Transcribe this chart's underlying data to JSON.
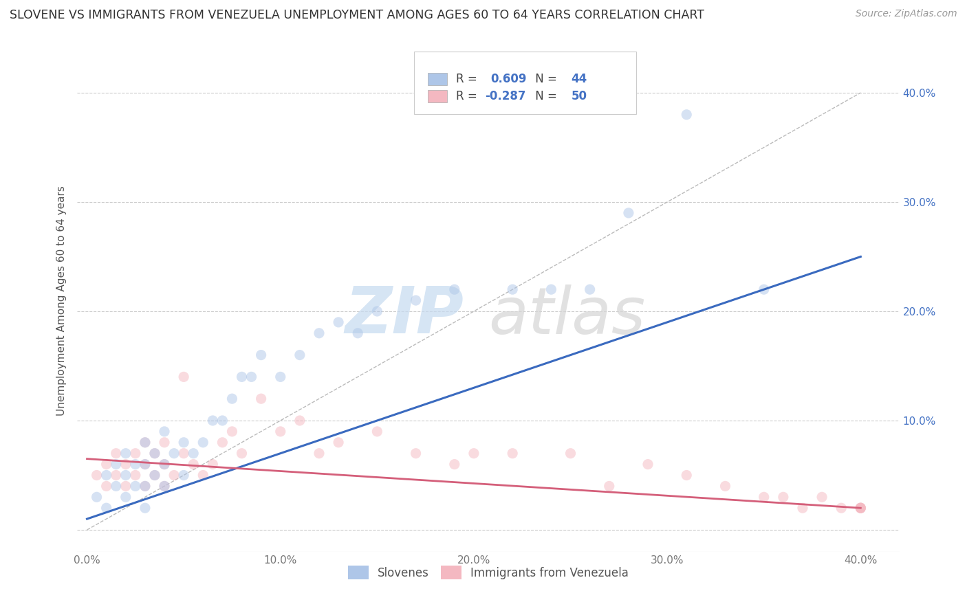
{
  "title": "SLOVENE VS IMMIGRANTS FROM VENEZUELA UNEMPLOYMENT AMONG AGES 60 TO 64 YEARS CORRELATION CHART",
  "source": "Source: ZipAtlas.com",
  "ylabel": "Unemployment Among Ages 60 to 64 years",
  "xlim": [
    -0.005,
    0.42
  ],
  "ylim": [
    -0.02,
    0.44
  ],
  "xticks": [
    0.0,
    0.1,
    0.2,
    0.3,
    0.4
  ],
  "yticks": [
    0.0,
    0.1,
    0.2,
    0.3,
    0.4
  ],
  "xticklabels": [
    "0.0%",
    "10.0%",
    "20.0%",
    "30.0%",
    "40.0%"
  ],
  "left_yticklabels": [
    "",
    "",
    "",
    "",
    ""
  ],
  "right_yticklabels": [
    "",
    "10.0%",
    "20.0%",
    "30.0%",
    "40.0%"
  ],
  "legend_blue_r": "0.609",
  "legend_blue_n": "44",
  "legend_pink_r": "-0.287",
  "legend_pink_n": "50",
  "legend_label_blue": "Slovenes",
  "legend_label_pink": "Immigrants from Venezuela",
  "blue_color": "#aec6e8",
  "pink_color": "#f4b8c1",
  "blue_line_color": "#3a6abf",
  "pink_line_color": "#d45f7a",
  "watermark_zip": "ZIP",
  "watermark_atlas": "atlas",
  "blue_scatter_x": [
    0.005,
    0.01,
    0.01,
    0.015,
    0.015,
    0.02,
    0.02,
    0.02,
    0.025,
    0.025,
    0.03,
    0.03,
    0.03,
    0.03,
    0.035,
    0.035,
    0.04,
    0.04,
    0.04,
    0.045,
    0.05,
    0.05,
    0.055,
    0.06,
    0.065,
    0.07,
    0.075,
    0.08,
    0.085,
    0.09,
    0.1,
    0.11,
    0.12,
    0.13,
    0.14,
    0.15,
    0.17,
    0.19,
    0.22,
    0.24,
    0.26,
    0.28,
    0.31,
    0.35
  ],
  "blue_scatter_y": [
    0.03,
    0.05,
    0.02,
    0.04,
    0.06,
    0.03,
    0.05,
    0.07,
    0.04,
    0.06,
    0.02,
    0.04,
    0.06,
    0.08,
    0.05,
    0.07,
    0.04,
    0.06,
    0.09,
    0.07,
    0.05,
    0.08,
    0.07,
    0.08,
    0.1,
    0.1,
    0.12,
    0.14,
    0.14,
    0.16,
    0.14,
    0.16,
    0.18,
    0.19,
    0.18,
    0.2,
    0.21,
    0.22,
    0.22,
    0.22,
    0.22,
    0.29,
    0.38,
    0.22
  ],
  "pink_scatter_x": [
    0.005,
    0.01,
    0.01,
    0.015,
    0.015,
    0.02,
    0.02,
    0.025,
    0.025,
    0.03,
    0.03,
    0.03,
    0.035,
    0.035,
    0.04,
    0.04,
    0.04,
    0.045,
    0.05,
    0.05,
    0.055,
    0.06,
    0.065,
    0.07,
    0.075,
    0.08,
    0.09,
    0.1,
    0.11,
    0.12,
    0.13,
    0.15,
    0.17,
    0.19,
    0.2,
    0.22,
    0.25,
    0.27,
    0.29,
    0.31,
    0.33,
    0.35,
    0.36,
    0.37,
    0.38,
    0.39,
    0.4,
    0.4,
    0.4,
    0.4
  ],
  "pink_scatter_y": [
    0.05,
    0.04,
    0.06,
    0.05,
    0.07,
    0.04,
    0.06,
    0.05,
    0.07,
    0.04,
    0.06,
    0.08,
    0.05,
    0.07,
    0.04,
    0.06,
    0.08,
    0.05,
    0.07,
    0.14,
    0.06,
    0.05,
    0.06,
    0.08,
    0.09,
    0.07,
    0.12,
    0.09,
    0.1,
    0.07,
    0.08,
    0.09,
    0.07,
    0.06,
    0.07,
    0.07,
    0.07,
    0.04,
    0.06,
    0.05,
    0.04,
    0.03,
    0.03,
    0.02,
    0.03,
    0.02,
    0.02,
    0.02,
    0.02,
    0.02
  ],
  "blue_trendline": [
    0.0,
    0.4,
    0.01,
    0.25
  ],
  "pink_trendline": [
    0.0,
    0.4,
    0.065,
    0.02
  ],
  "diag_line": [
    0.0,
    0.4,
    0.0,
    0.4
  ],
  "background_color": "#ffffff",
  "grid_color": "#cccccc",
  "title_fontsize": 12.5,
  "axis_label_fontsize": 11,
  "tick_fontsize": 11,
  "scatter_size": 120,
  "scatter_alpha": 0.5
}
